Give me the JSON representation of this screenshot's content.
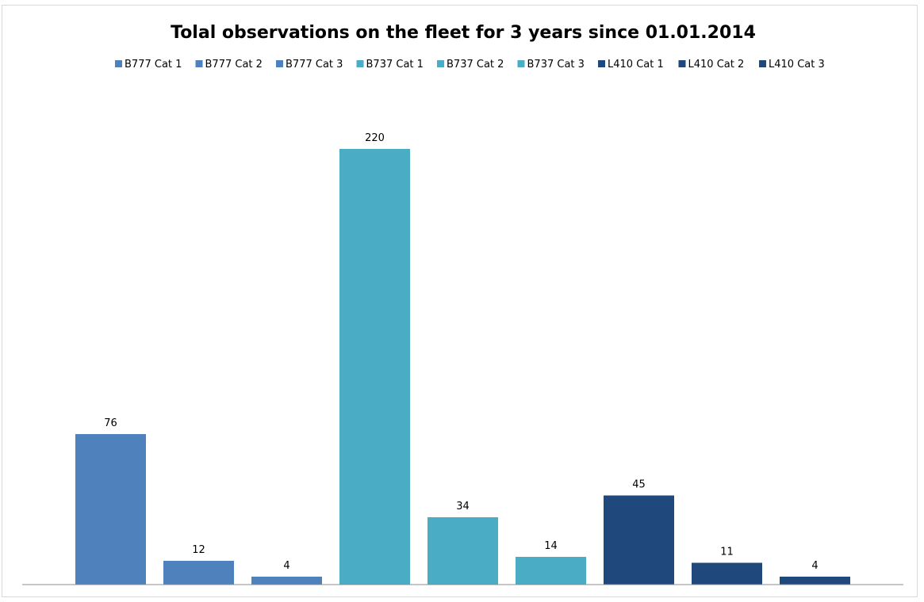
{
  "chart_data": {
    "type": "bar",
    "title": "Tolal observations on the fleet for 3 years since 01.01.2014",
    "xlabel": "",
    "ylabel": "",
    "ylim": [
      0,
      230
    ],
    "grid": false,
    "legend_position": "top",
    "show_data_labels": true,
    "series": [
      {
        "name": "B777 Cat 1",
        "value": 76,
        "color": "#4f81bd"
      },
      {
        "name": "B777 Cat 2",
        "value": 12,
        "color": "#4f81bd"
      },
      {
        "name": "B777 Cat 3",
        "value": 4,
        "color": "#4f81bd"
      },
      {
        "name": "B737 Cat 1",
        "value": 220,
        "color": "#4bacc6"
      },
      {
        "name": "B737 Cat 2",
        "value": 34,
        "color": "#4bacc6"
      },
      {
        "name": "B737 Cat 3",
        "value": 14,
        "color": "#4bacc6"
      },
      {
        "name": "L410 Cat 1",
        "value": 45,
        "color": "#1f497d"
      },
      {
        "name": "L410 Cat 2",
        "value": 11,
        "color": "#1f497d"
      },
      {
        "name": "L410 Cat 3",
        "value": 4,
        "color": "#1f497d"
      }
    ]
  }
}
